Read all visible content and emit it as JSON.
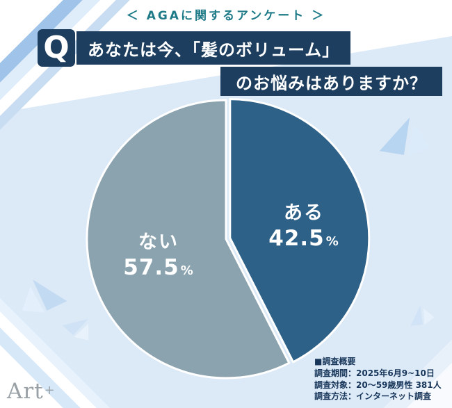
{
  "header": {
    "tag": "＜ AGAに関するアンケート ＞"
  },
  "question": {
    "q_mark": "Q",
    "line1": "あなたは今、「髪のボリューム」",
    "line2": "のお悩みはありますか？"
  },
  "chart_data": {
    "type": "pie",
    "title": "あなたは今、「髪のボリューム」のお悩みはありますか？",
    "unit": "%",
    "start_angle_deg": 0,
    "direction": "clockwise",
    "legend": "none",
    "value_labels_inside": true,
    "slices": [
      {
        "label": "ある",
        "value": 42.5,
        "color": "#2e6188",
        "text_color": "#ffffff",
        "exploded": true
      },
      {
        "label": "ない",
        "value": 57.5,
        "color": "#8ba3ae",
        "text_color": "#ffffff",
        "exploded": false
      }
    ]
  },
  "footer": {
    "logo_text": "Art",
    "logo_plus": "+",
    "survey": {
      "title": "■調査概要",
      "lines": [
        "調査期間：2025年6月9~10日",
        "調査対象：20～59歳男性 381人",
        "調査方法：インターネット調査"
      ]
    }
  },
  "colors": {
    "navy": "#1d3e5e",
    "teal_tag": "#1e7a87",
    "panel_blue": "#dce9f7",
    "pie_yes": "#2e6188",
    "pie_no": "#8ba3ae",
    "info_text": "#17365a",
    "logo_gray": "#99a1a6"
  }
}
